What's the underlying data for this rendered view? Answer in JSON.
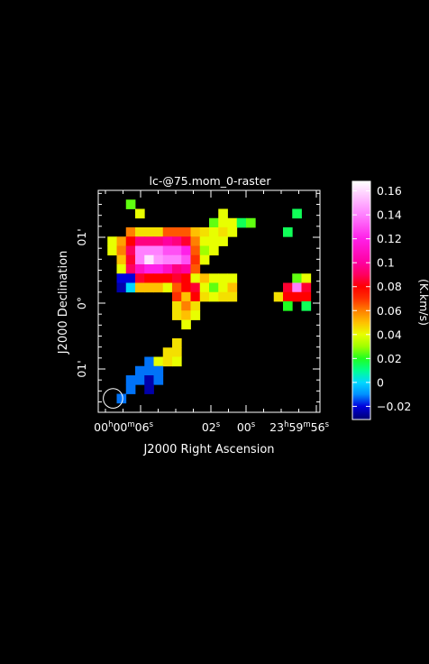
{
  "chart_data": {
    "type": "heatmap",
    "title": "lc-@75.mom_0-raster",
    "xlabel": "J2000 Right Ascension",
    "ylabel": "J2000 Declination",
    "x_ticks": [
      {
        "label_parts": [
          [
            "00",
            "h"
          ],
          [
            "00",
            "m"
          ],
          [
            "06",
            "s"
          ]
        ],
        "value": 6
      },
      {
        "label_parts": [
          [
            "02",
            "s"
          ]
        ],
        "value": 2
      },
      {
        "label_parts": [
          [
            "00",
            "s"
          ]
        ],
        "value": 0
      },
      {
        "label_parts": [
          [
            "23",
            "h"
          ],
          [
            "59",
            "m"
          ],
          [
            "56",
            "s"
          ]
        ],
        "value": -4
      }
    ],
    "y_ticks": [
      {
        "label": "01'",
        "value": 1
      },
      {
        "label": "0°",
        "value": 0
      },
      {
        "label": "01'",
        "value": -1
      }
    ],
    "colorbar": {
      "label": "(K.km/s)",
      "range": [
        -0.031,
        0.168
      ],
      "ticks": [
        {
          "label": "0.16",
          "value": 0.16
        },
        {
          "label": "0.14",
          "value": 0.14
        },
        {
          "label": "0.12",
          "value": 0.12
        },
        {
          "label": "0.1",
          "value": 0.1
        },
        {
          "label": "0.08",
          "value": 0.08
        },
        {
          "label": "0.06",
          "value": 0.06
        },
        {
          "label": "0.04",
          "value": 0.04
        },
        {
          "label": "0.02",
          "value": 0.02
        },
        {
          "label": "0",
          "value": 0
        },
        {
          "label": "−0.02",
          "value": -0.02
        }
      ],
      "colormap": [
        [
          -0.031,
          "#000070"
        ],
        [
          -0.02,
          "#0000dd"
        ],
        [
          -0.01,
          "#0090ff"
        ],
        [
          0.0,
          "#00d8ff"
        ],
        [
          0.01,
          "#00ff90"
        ],
        [
          0.02,
          "#20ff20"
        ],
        [
          0.03,
          "#a0ff00"
        ],
        [
          0.04,
          "#e8ff00"
        ],
        [
          0.05,
          "#ffc000"
        ],
        [
          0.06,
          "#ff8000"
        ],
        [
          0.07,
          "#ff3000"
        ],
        [
          0.08,
          "#ff0000"
        ],
        [
          0.09,
          "#ff0060"
        ],
        [
          0.1,
          "#ff00a0"
        ],
        [
          0.12,
          "#ff20e8"
        ],
        [
          0.14,
          "#ff80ff"
        ],
        [
          0.168,
          "#ffffff"
        ]
      ]
    },
    "grid": {
      "cols": 24,
      "rows": 24
    },
    "beam": {
      "shape": "circle",
      "col": 1.6,
      "row": 1.5
    },
    "cells": [
      [
        3,
        22,
        0.025
      ],
      [
        4,
        21,
        0.04
      ],
      [
        21,
        21,
        0.015
      ],
      [
        20,
        19,
        0.015
      ],
      [
        13,
        21,
        0.04
      ],
      [
        12,
        20,
        0.025
      ],
      [
        13,
        20,
        0.04
      ],
      [
        14,
        20,
        0.04
      ],
      [
        15,
        20,
        0.015
      ],
      [
        16,
        20,
        0.025
      ],
      [
        3,
        19,
        0.06
      ],
      [
        4,
        19,
        0.045
      ],
      [
        5,
        19,
        0.045
      ],
      [
        6,
        19,
        0.045
      ],
      [
        7,
        19,
        0.065
      ],
      [
        8,
        19,
        0.065
      ],
      [
        9,
        19,
        0.065
      ],
      [
        10,
        19,
        0.05
      ],
      [
        11,
        19,
        0.045
      ],
      [
        12,
        19,
        0.04
      ],
      [
        13,
        19,
        0.045
      ],
      [
        14,
        19,
        0.04
      ],
      [
        1,
        18,
        0.04
      ],
      [
        2,
        18,
        0.055
      ],
      [
        3,
        18,
        0.08
      ],
      [
        4,
        18,
        0.095
      ],
      [
        5,
        18,
        0.095
      ],
      [
        6,
        18,
        0.095
      ],
      [
        7,
        18,
        0.1
      ],
      [
        8,
        18,
        0.095
      ],
      [
        9,
        18,
        0.085
      ],
      [
        10,
        18,
        0.06
      ],
      [
        11,
        18,
        0.04
      ],
      [
        12,
        18,
        0.04
      ],
      [
        13,
        18,
        0.04
      ],
      [
        1,
        17,
        0.04
      ],
      [
        2,
        17,
        0.06
      ],
      [
        3,
        17,
        0.09
      ],
      [
        4,
        17,
        0.14
      ],
      [
        5,
        17,
        0.14
      ],
      [
        6,
        17,
        0.14
      ],
      [
        7,
        17,
        0.13
      ],
      [
        8,
        17,
        0.13
      ],
      [
        9,
        17,
        0.12
      ],
      [
        10,
        17,
        0.065
      ],
      [
        11,
        17,
        0.03
      ],
      [
        12,
        17,
        0.04
      ],
      [
        2,
        16,
        0.05
      ],
      [
        3,
        16,
        0.085
      ],
      [
        4,
        16,
        0.14
      ],
      [
        5,
        16,
        0.162
      ],
      [
        6,
        16,
        0.145
      ],
      [
        7,
        16,
        0.14
      ],
      [
        8,
        16,
        0.14
      ],
      [
        9,
        16,
        0.13
      ],
      [
        10,
        16,
        0.07
      ],
      [
        11,
        16,
        0.04
      ],
      [
        2,
        15,
        0.04
      ],
      [
        3,
        15,
        0.09
      ],
      [
        4,
        15,
        0.11
      ],
      [
        5,
        15,
        0.12
      ],
      [
        6,
        15,
        0.12
      ],
      [
        7,
        15,
        0.11
      ],
      [
        8,
        15,
        0.095
      ],
      [
        9,
        15,
        0.1
      ],
      [
        10,
        15,
        0.065
      ],
      [
        2,
        14,
        -0.02
      ],
      [
        3,
        14,
        -0.02
      ],
      [
        4,
        14,
        0.085
      ],
      [
        5,
        14,
        0.08
      ],
      [
        6,
        14,
        0.08
      ],
      [
        7,
        14,
        0.08
      ],
      [
        8,
        14,
        0.085
      ],
      [
        9,
        14,
        0.08
      ],
      [
        10,
        14,
        0.04
      ],
      [
        11,
        14,
        0.05
      ],
      [
        12,
        14,
        0.04
      ],
      [
        13,
        14,
        0.04
      ],
      [
        14,
        14,
        0.04
      ],
      [
        2,
        13,
        -0.025
      ],
      [
        3,
        13,
        0.0
      ],
      [
        4,
        13,
        0.05
      ],
      [
        5,
        13,
        0.05
      ],
      [
        6,
        13,
        0.05
      ],
      [
        7,
        13,
        0.04
      ],
      [
        8,
        13,
        0.065
      ],
      [
        9,
        13,
        0.08
      ],
      [
        10,
        13,
        0.085
      ],
      [
        11,
        13,
        0.04
      ],
      [
        12,
        13,
        0.025
      ],
      [
        13,
        13,
        0.04
      ],
      [
        14,
        13,
        0.05
      ],
      [
        8,
        12,
        0.07
      ],
      [
        9,
        12,
        0.05
      ],
      [
        10,
        12,
        0.08
      ],
      [
        11,
        12,
        0.045
      ],
      [
        12,
        12,
        0.04
      ],
      [
        13,
        12,
        0.045
      ],
      [
        14,
        12,
        0.045
      ],
      [
        8,
        11,
        0.045
      ],
      [
        9,
        11,
        0.06
      ],
      [
        10,
        11,
        0.045
      ],
      [
        8,
        10,
        0.045
      ],
      [
        9,
        10,
        0.05
      ],
      [
        10,
        10,
        0.04
      ],
      [
        9,
        9,
        0.04
      ],
      [
        21,
        14,
        0.025
      ],
      [
        22,
        14,
        0.04
      ],
      [
        20,
        13,
        0.085
      ],
      [
        21,
        13,
        0.14
      ],
      [
        22,
        13,
        0.085
      ],
      [
        19,
        12,
        0.045
      ],
      [
        20,
        12,
        0.08
      ],
      [
        21,
        12,
        0.08
      ],
      [
        22,
        12,
        0.08
      ],
      [
        20,
        11,
        0.02
      ],
      [
        22,
        11,
        0.015
      ],
      [
        8,
        7,
        0.045
      ],
      [
        7,
        6,
        0.045
      ],
      [
        8,
        6,
        0.045
      ],
      [
        5,
        5,
        -0.012
      ],
      [
        6,
        5,
        0.04
      ],
      [
        7,
        5,
        0.045
      ],
      [
        8,
        5,
        0.04
      ],
      [
        4,
        4,
        -0.012
      ],
      [
        5,
        4,
        -0.012
      ],
      [
        6,
        4,
        -0.012
      ],
      [
        3,
        3,
        -0.012
      ],
      [
        4,
        3,
        -0.012
      ],
      [
        5,
        3,
        -0.025
      ],
      [
        6,
        3,
        -0.012
      ],
      [
        3,
        2,
        -0.012
      ],
      [
        5,
        2,
        -0.025
      ],
      [
        2,
        1,
        -0.012
      ]
    ]
  }
}
